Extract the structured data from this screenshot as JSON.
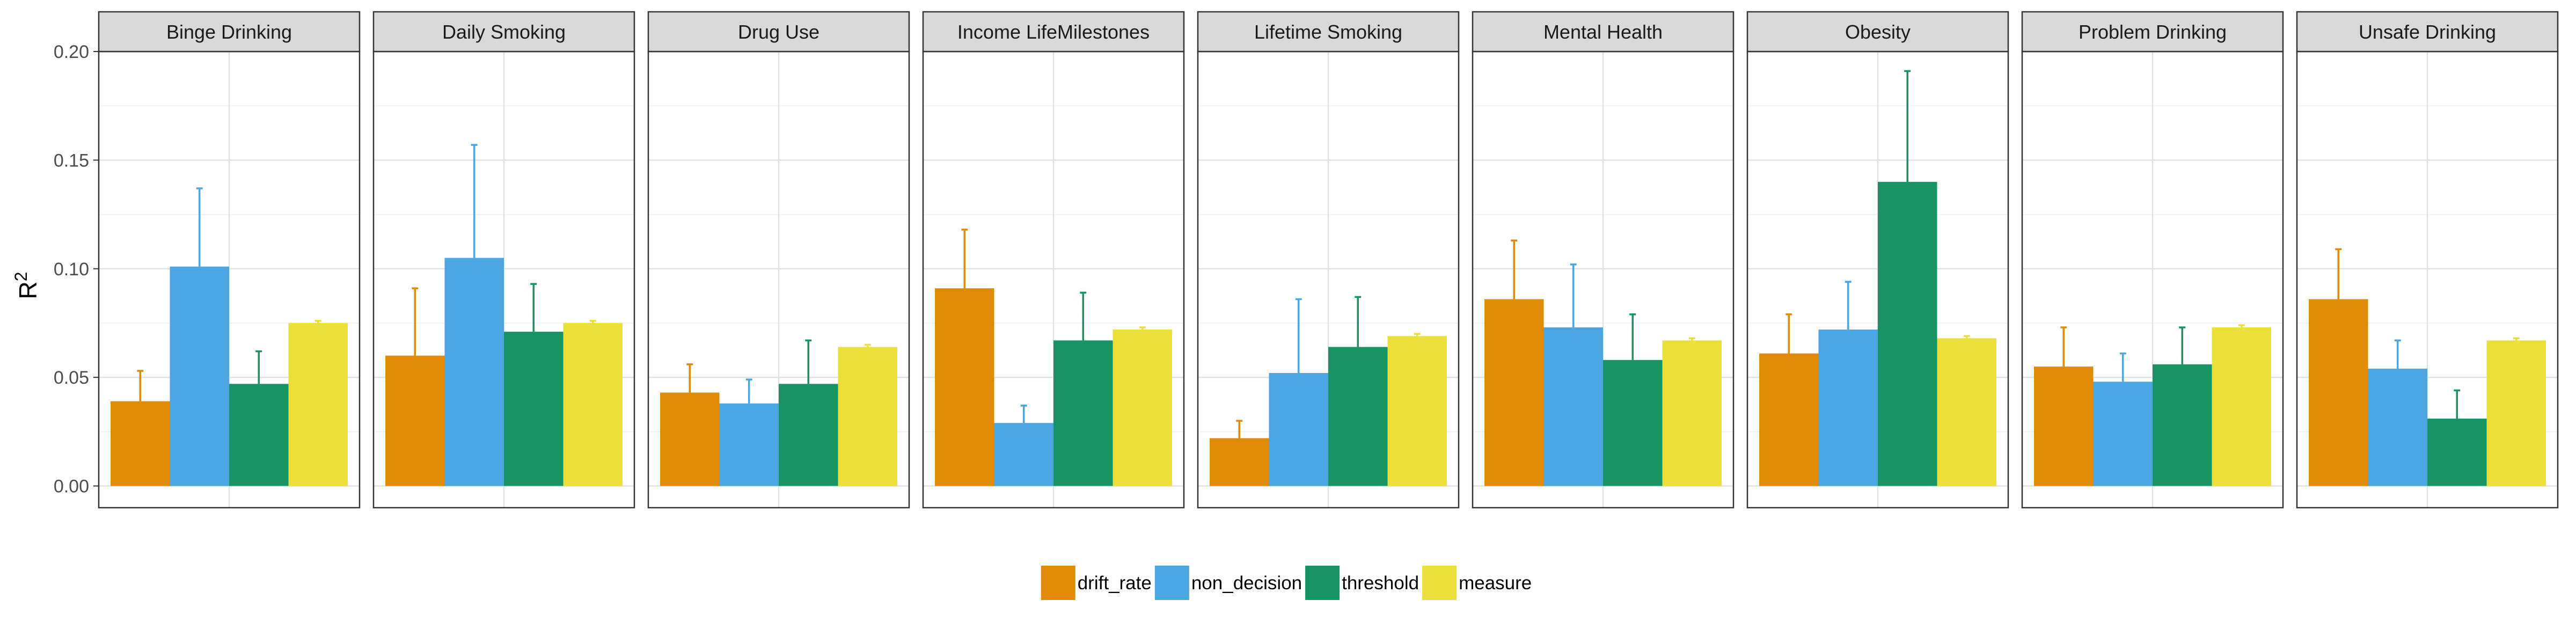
{
  "chart_data": {
    "type": "bar",
    "ylabel": "R",
    "ylabel_superscript": "2",
    "ylim": [
      -0.01,
      0.2
    ],
    "yticks": [
      0,
      0.05,
      0.1,
      0.15,
      0.2
    ],
    "ytick_labels": [
      "0.00",
      "0.05",
      "0.10",
      "0.15",
      "0.20"
    ],
    "grid": true,
    "legend_position": "bottom",
    "series": [
      {
        "name": "drift_rate",
        "color": "#E08B08"
      },
      {
        "name": "non_decision",
        "color": "#4BA6E2"
      },
      {
        "name": "threshold",
        "color": "#169463"
      },
      {
        "name": "measure",
        "color": "#EBE03A"
      }
    ],
    "panels": [
      {
        "title": "Binge Drinking",
        "values": [
          0.039,
          0.101,
          0.047,
          0.075
        ],
        "upper": [
          0.053,
          0.137,
          0.062,
          0.076
        ]
      },
      {
        "title": "Daily Smoking",
        "values": [
          0.06,
          0.105,
          0.071,
          0.075
        ],
        "upper": [
          0.091,
          0.157,
          0.093,
          0.076
        ]
      },
      {
        "title": "Drug Use",
        "values": [
          0.043,
          0.038,
          0.047,
          0.064
        ],
        "upper": [
          0.056,
          0.049,
          0.067,
          0.065
        ]
      },
      {
        "title": "Income LifeMilestones",
        "values": [
          0.091,
          0.029,
          0.067,
          0.072
        ],
        "upper": [
          0.118,
          0.037,
          0.089,
          0.073
        ]
      },
      {
        "title": "Lifetime Smoking",
        "values": [
          0.022,
          0.052,
          0.064,
          0.069
        ],
        "upper": [
          0.03,
          0.086,
          0.087,
          0.07
        ]
      },
      {
        "title": "Mental Health",
        "values": [
          0.086,
          0.073,
          0.058,
          0.067
        ],
        "upper": [
          0.113,
          0.102,
          0.079,
          0.068
        ]
      },
      {
        "title": "Obesity",
        "values": [
          0.061,
          0.072,
          0.14,
          0.068
        ],
        "upper": [
          0.079,
          0.094,
          0.191,
          0.069
        ]
      },
      {
        "title": "Problem Drinking",
        "values": [
          0.055,
          0.048,
          0.056,
          0.073
        ],
        "upper": [
          0.073,
          0.061,
          0.073,
          0.074
        ]
      },
      {
        "title": "Unsafe Drinking",
        "values": [
          0.086,
          0.054,
          0.031,
          0.067
        ],
        "upper": [
          0.109,
          0.067,
          0.044,
          0.068
        ]
      }
    ]
  }
}
